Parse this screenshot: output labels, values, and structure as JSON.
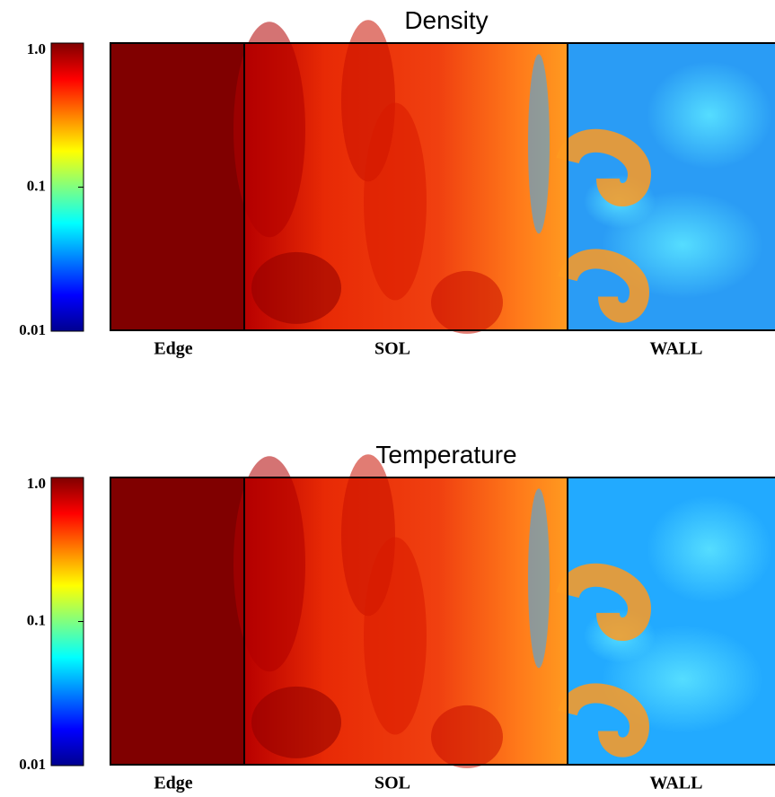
{
  "chart_data": [
    {
      "type": "heatmap",
      "title": "Density",
      "colormap": "jet",
      "log_scale": true,
      "ylim": [
        0.01,
        1
      ],
      "yticks": [
        0.01,
        0.1,
        {
          "value": 1,
          "label": "1.0"
        }
      ],
      "regions": [
        "Edge",
        "SOL",
        "WALL"
      ]
    },
    {
      "type": "heatmap",
      "title": "Temperature",
      "colormap": "jet",
      "log_scale": true,
      "ylim": [
        0.01,
        1
      ],
      "yticks": [
        0.01,
        0.1,
        {
          "value": 1,
          "label": "1.0"
        }
      ],
      "regions": [
        "Edge",
        "SOL",
        "WALL"
      ]
    }
  ]
}
